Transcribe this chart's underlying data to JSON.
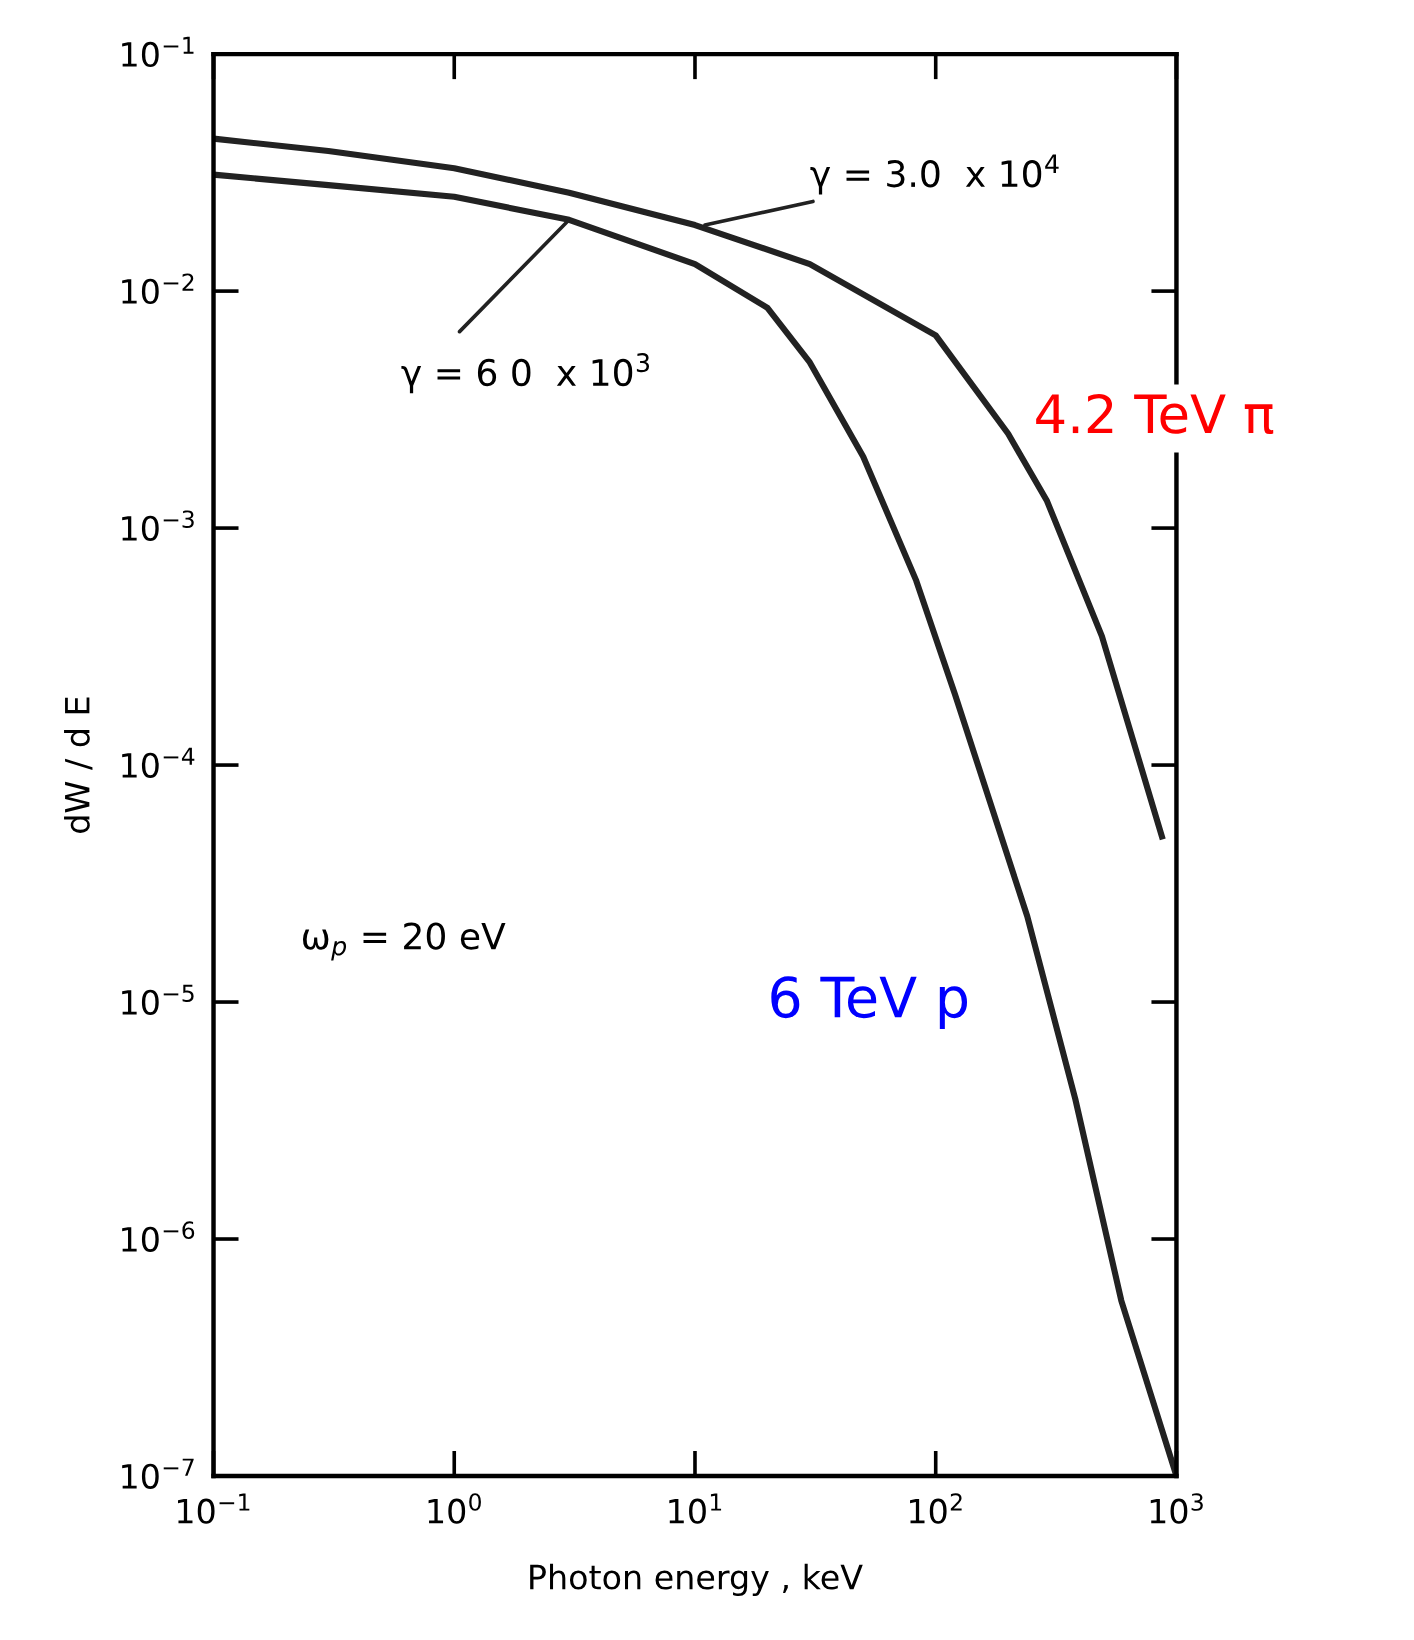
{
  "chart_data": {
    "type": "line",
    "xlabel": "Photon energy , keV",
    "ylabel": "dW / d E",
    "log": "xy",
    "xlim": [
      0.1,
      1000
    ],
    "ylim": [
      1e-07,
      0.1
    ],
    "xticks": [
      {
        "value": 0.1,
        "label": "10$^{−1}$"
      },
      {
        "value": 1,
        "label": "10$^{0}$"
      },
      {
        "value": 10,
        "label": "10$^{1}$"
      },
      {
        "value": 100,
        "label": "10$^{2}$"
      },
      {
        "value": 1000,
        "label": "10$^{3}$"
      }
    ],
    "yticks": [
      {
        "value": 1e-07,
        "label": "10$^{−7}$"
      },
      {
        "value": 1e-06,
        "label": "10$^{−6}$"
      },
      {
        "value": 1e-05,
        "label": "10$^{−5}$"
      },
      {
        "value": 0.0001,
        "label": "10$^{−4}$"
      },
      {
        "value": 0.001,
        "label": "10$^{−3}$"
      },
      {
        "value": 0.01,
        "label": "10$^{−2}$"
      },
      {
        "value": 0.1,
        "label": "10$^{−1}$"
      }
    ],
    "grid": false,
    "legend": false,
    "marker": "none",
    "line_style": "solid",
    "series": [
      {
        "color": "#222222",
        "x": [
          0.1,
          0.3,
          1,
          3,
          10,
          30,
          100,
          200,
          290,
          490,
          870
        ],
        "values": [
          0.044,
          0.039,
          0.033,
          0.026,
          0.019,
          0.013,
          0.0065,
          0.0025,
          0.0013,
          0.00035,
          5e-05
        ]
      },
      {
        "color": "#222222",
        "x": [
          0.1,
          0.3,
          1,
          3,
          10,
          20,
          30,
          50,
          83,
          120,
          240,
          380,
          590,
          1000
        ],
        "values": [
          0.031,
          0.028,
          0.025,
          0.02,
          0.013,
          0.0085,
          0.005,
          0.002,
          0.0006,
          0.0002,
          2.3e-05,
          3.9e-06,
          5.5e-07,
          1e-07
        ]
      }
    ],
    "annotations": [
      {
        "text": "γ = 3.0  x 10$^{4}$",
        "x": 11,
        "y": 0.019
      },
      {
        "text": "γ = 6 0  x 10$^{3}$",
        "x": 3,
        "y": 0.02
      },
      {
        "text": "ω$_{p}$ = 20 eV"
      },
      {
        "text": "4.2 TeV π",
        "x": 290,
        "y": 0.0013
      },
      {
        "text": "6 TeV p",
        "x": 380,
        "y": 3.9e-06
      }
    ]
  }
}
